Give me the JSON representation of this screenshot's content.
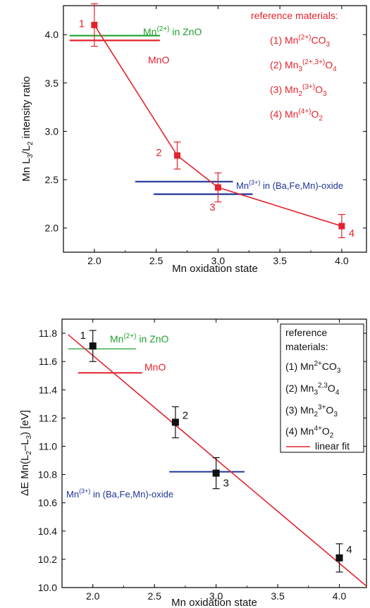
{
  "chart_data": [
    {
      "type": "scatter",
      "xlabel": "Mn oxidation state",
      "ylabel": "Mn L3/L2 intensity ratio",
      "xlim": [
        1.75,
        4.2
      ],
      "ylim": [
        1.75,
        4.3
      ],
      "x_ticks": [
        "2.0",
        "2.5",
        "3.0",
        "3.5",
        "4.0"
      ],
      "y_ticks": [
        "2.0",
        "2.5",
        "3.0",
        "3.5",
        "4.0"
      ],
      "colors": {
        "data": "#e3232d",
        "zno": "#1fa12e",
        "mno": "#e3232d",
        "bafe": "#1f3396"
      },
      "points": [
        {
          "label": "1",
          "x": 2.0,
          "y": 4.1,
          "err": 0.22
        },
        {
          "label": "2",
          "x": 2.67,
          "y": 2.75,
          "err": 0.14
        },
        {
          "label": "3",
          "x": 3.0,
          "y": 2.42,
          "err": 0.15
        },
        {
          "label": "4",
          "x": 4.0,
          "y": 2.02,
          "err": 0.12
        }
      ],
      "ref_lines": [
        {
          "key": "zno",
          "label": "Mn(2+) in ZnO",
          "x": [
            1.8,
            2.53
          ],
          "y": 3.99
        },
        {
          "key": "mno",
          "label": "MnO",
          "x": [
            1.8,
            2.53
          ],
          "y": 3.94
        },
        {
          "key": "bafe",
          "label": "Mn(3+) in (Ba,Fe,Mn)-oxide",
          "x": [
            2.33,
            3.12
          ],
          "y": 2.48
        },
        {
          "key": "bafe",
          "label": "",
          "x": [
            2.48,
            3.28
          ],
          "y": 2.35
        }
      ],
      "legend_title": "reference materials:",
      "legend": [
        "(1) Mn(2+)CO3",
        "(2) Mn3(2+,3+)O4",
        "(3) Mn2(3+)O3",
        "(4) Mn(4+)O2"
      ]
    },
    {
      "type": "scatter",
      "xlabel": "Mn oxidation state",
      "ylabel": "ΔE Mn(L2–L3) [eV]",
      "xlim": [
        1.75,
        4.22
      ],
      "ylim": [
        10.0,
        11.9
      ],
      "x_ticks": [
        "2.0",
        "2.5",
        "3.0",
        "3.5",
        "4.0"
      ],
      "y_ticks": [
        "10.0",
        "10.2",
        "10.4",
        "10.6",
        "10.8",
        "11.0",
        "11.2",
        "11.4",
        "11.6",
        "11.8"
      ],
      "colors": {
        "data": "#111111",
        "zno": "#1fa12e",
        "mno": "#e3232d",
        "bafe": "#1f3396",
        "fit": "#e3232d"
      },
      "points": [
        {
          "label": "1",
          "x": 2.0,
          "y": 11.71,
          "err": 0.11
        },
        {
          "label": "2",
          "x": 2.67,
          "y": 11.17,
          "err": 0.11
        },
        {
          "label": "3",
          "x": 3.0,
          "y": 10.81,
          "err": 0.11
        },
        {
          "label": "4",
          "x": 4.0,
          "y": 10.21,
          "err": 0.1
        }
      ],
      "fit": {
        "x": [
          1.8,
          4.22
        ],
        "y": [
          11.79,
          10.01
        ]
      },
      "ref_lines": [
        {
          "key": "zno",
          "label": "Mn(2+) in ZnO",
          "x": [
            1.8,
            2.35
          ],
          "y": 11.69
        },
        {
          "key": "mno",
          "label": "MnO",
          "x": [
            1.88,
            2.4
          ],
          "y": 11.52
        },
        {
          "key": "bafe",
          "label": "Mn(3+) in (Ba,Fe,Mn)-oxide",
          "x": [
            2.62,
            3.23
          ],
          "y": 10.82
        }
      ],
      "legend_title": "reference materials:",
      "legend": [
        "(1) Mn2+CO3",
        "(2) Mn3 2,3 O4",
        "(3) Mn2 3+ O3",
        "(4) Mn4+O2",
        "linear fit"
      ]
    }
  ]
}
